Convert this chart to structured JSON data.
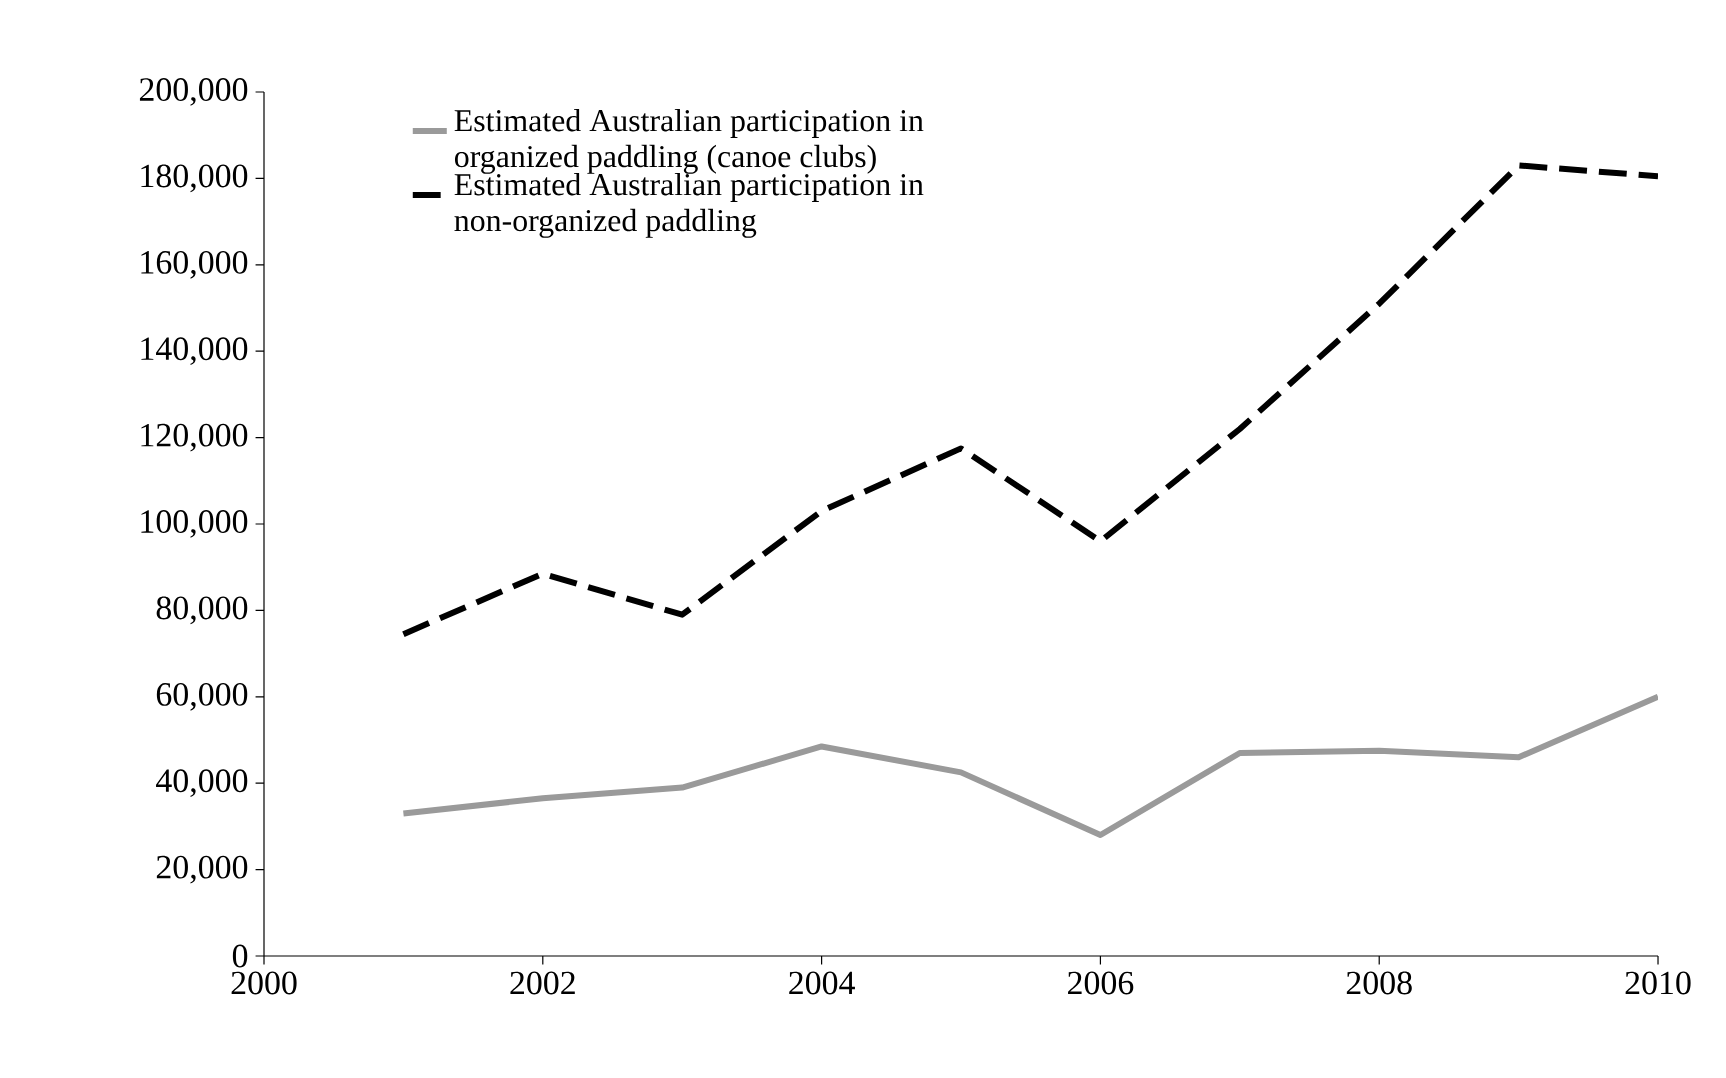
{
  "chart_data": {
    "type": "line",
    "x": [
      2001,
      2002,
      2003,
      2004,
      2005,
      2006,
      2007,
      2008,
      2009,
      2010
    ],
    "series": [
      {
        "name": "Estimated Australian participation in organized paddling (canoe clubs)",
        "color": "#9a9a9a",
        "line_style": "solid",
        "values": [
          33000,
          36500,
          39000,
          48500,
          42500,
          28000,
          47000,
          47500,
          46000,
          60000
        ]
      },
      {
        "name": "Estimated Australian participation in non-organized paddling",
        "color": "#000000",
        "line_style": "dashed",
        "values": [
          74500,
          88500,
          79000,
          103000,
          117500,
          96000,
          122000,
          151000,
          183000,
          180500
        ]
      }
    ],
    "xlim": [
      2000,
      2010
    ],
    "ylim": [
      0,
      200000
    ],
    "xticks": [
      2000,
      2002,
      2004,
      2006,
      2008,
      2010
    ],
    "yticks": [
      {
        "value": 0,
        "label": "0"
      },
      {
        "value": 20000,
        "label": "20,000"
      },
      {
        "value": 40000,
        "label": "40,000"
      },
      {
        "value": 60000,
        "label": "60,000"
      },
      {
        "value": 80000,
        "label": "80,000"
      },
      {
        "value": 100000,
        "label": "100,000"
      },
      {
        "value": 120000,
        "label": "120,000"
      },
      {
        "value": 140000,
        "label": "140,000"
      },
      {
        "value": 160000,
        "label": "160,000"
      },
      {
        "value": 180000,
        "label": "180,000"
      },
      {
        "value": 200000,
        "label": "200,000"
      }
    ],
    "legend": "top left",
    "grid": false,
    "marker": "none"
  }
}
